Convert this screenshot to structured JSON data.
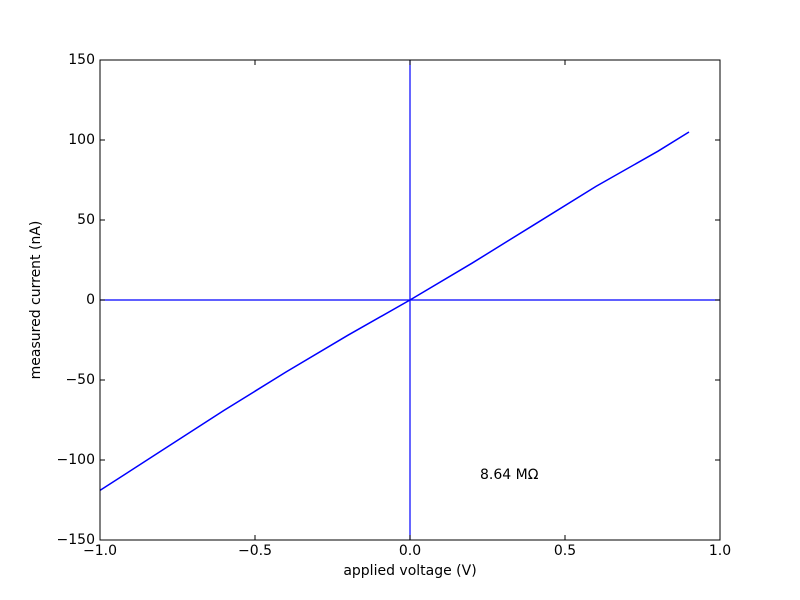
{
  "chart_data": {
    "type": "line",
    "xlabel": "applied voltage (V)",
    "ylabel": "measured current (nA)",
    "annotation": "8.64 MΩ",
    "series": [
      {
        "color": "#0000ff",
        "x": [
          -1.0,
          -0.8,
          -0.6,
          -0.4,
          -0.2,
          0.0,
          0.2,
          0.4,
          0.6,
          0.8,
          0.9
        ],
        "values": [
          -119,
          -94,
          -69,
          -45,
          -22,
          0,
          23,
          47,
          71,
          93,
          105
        ]
      }
    ],
    "ref_lines": {
      "x": [
        0
      ],
      "y": [
        0
      ],
      "color": "#0000ff"
    },
    "xlim": [
      -1.0,
      1.0
    ],
    "xticks": [
      {
        "value": -1.0,
        "label": "−1.0"
      },
      {
        "value": -0.5,
        "label": "−0.5"
      },
      {
        "value": 0.0,
        "label": "0.0"
      },
      0.5,
      {
        "value": 1.0,
        "label": "1.0"
      }
    ],
    "ylim": [
      -150,
      150
    ],
    "yticks": [
      {
        "value": -150,
        "label": "−150"
      },
      {
        "value": -100,
        "label": "−100"
      },
      {
        "value": -50,
        "label": "−50"
      },
      0,
      50,
      100,
      150
    ]
  }
}
